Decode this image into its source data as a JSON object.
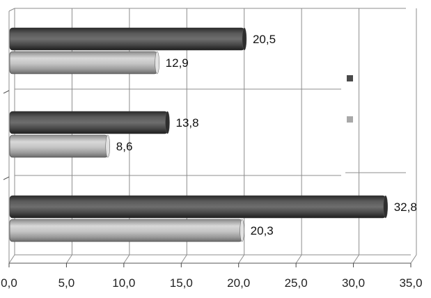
{
  "chart_data": {
    "type": "bar",
    "orientation": "horizontal",
    "style": "3d-cylinder",
    "categories": [
      "",
      "",
      ""
    ],
    "series": [
      {
        "values": [
          20.5,
          13.8,
          32.8
        ],
        "color": "#4a4a4a"
      },
      {
        "values": [
          12.9,
          8.6,
          20.3
        ],
        "color": "#a8a8a8"
      }
    ],
    "data_labels": [
      [
        "20,5",
        "13,8",
        "32,8"
      ],
      [
        "12,9",
        "8,6",
        "20,3"
      ]
    ],
    "xlim": [
      0,
      35
    ],
    "x_ticks": [
      0,
      5,
      10,
      15,
      20,
      25,
      30,
      35
    ],
    "x_tick_labels": [
      "0,0",
      "5,0",
      "10,0",
      "15,0",
      "20,0",
      "25,0",
      "30,0",
      "35,0"
    ],
    "grid": "vertical",
    "legend": {
      "position": "right",
      "entries": [
        "",
        ""
      ],
      "colors": [
        "#4a4a4a",
        "#a8a8a8"
      ]
    },
    "title": "",
    "xlabel": "",
    "ylabel": ""
  }
}
